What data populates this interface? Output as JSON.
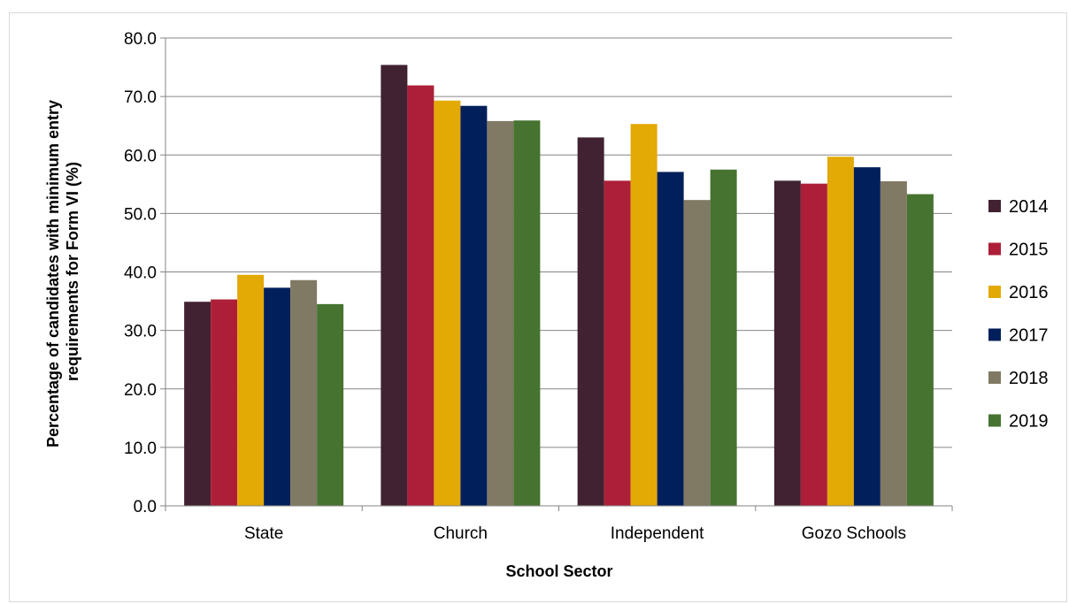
{
  "chart_data": {
    "type": "bar",
    "title": "",
    "xlabel": "School Sector",
    "ylabel_line1": "Percentage of candidates with minimum entry",
    "ylabel_line2": "requirements for Form VI (%)",
    "ylim": [
      0,
      80
    ],
    "y_ticks": [
      "0.0",
      "10.0",
      "20.0",
      "30.0",
      "40.0",
      "50.0",
      "60.0",
      "70.0",
      "80.0"
    ],
    "grid": true,
    "legend_position": "right",
    "categories": [
      "State",
      "Church",
      "Independent",
      "Gozo Schools"
    ],
    "series": [
      {
        "name": "2014",
        "color": "#412232",
        "values": [
          34.9,
          75.4,
          63.0,
          55.6
        ]
      },
      {
        "name": "2015",
        "color": "#ad1f38",
        "values": [
          35.3,
          71.9,
          55.6,
          55.1
        ]
      },
      {
        "name": "2016",
        "color": "#e3a904",
        "values": [
          39.5,
          69.3,
          65.3,
          59.7
        ]
      },
      {
        "name": "2017",
        "color": "#001f5b",
        "values": [
          37.3,
          68.4,
          57.1,
          57.9
        ]
      },
      {
        "name": "2018",
        "color": "#807963",
        "values": [
          38.6,
          65.8,
          52.3,
          55.5
        ]
      },
      {
        "name": "2019",
        "color": "#477330",
        "values": [
          34.5,
          65.9,
          57.5,
          53.3
        ]
      }
    ]
  }
}
